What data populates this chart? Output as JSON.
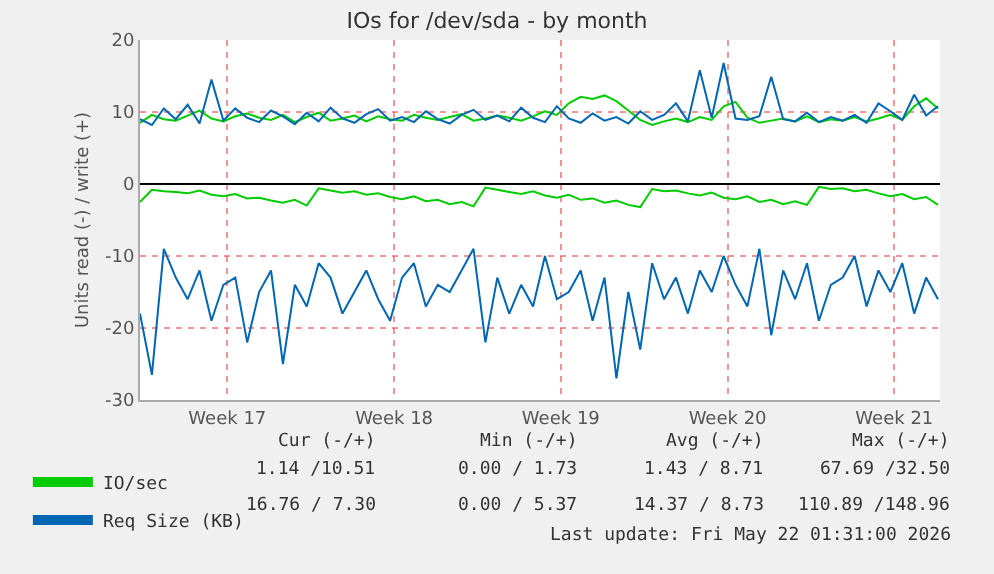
{
  "chart_data": {
    "type": "line",
    "title": "IOs for /dev/sda - by month",
    "ylabel": "Units read (-) / write (+)",
    "x": [
      "2026-04-19T20:00",
      "2026-04-20T08:00",
      "2026-04-20T20:00",
      "2026-04-21T08:00",
      "2026-04-21T20:00",
      "2026-04-22T08:00",
      "2026-04-22T20:00",
      "2026-04-23T08:00",
      "2026-04-23T20:00",
      "2026-04-24T08:00",
      "2026-04-24T20:00",
      "2026-04-25T08:00",
      "2026-04-25T20:00",
      "2026-04-26T08:00",
      "2026-04-26T20:00",
      "2026-04-27T08:00",
      "2026-04-27T20:00",
      "2026-04-28T08:00",
      "2026-04-28T20:00",
      "2026-04-29T08:00",
      "2026-04-29T20:00",
      "2026-04-30T08:00",
      "2026-04-30T20:00",
      "2026-05-01T08:00",
      "2026-05-01T20:00",
      "2026-05-02T08:00",
      "2026-05-02T20:00",
      "2026-05-03T08:00",
      "2026-05-03T20:00",
      "2026-05-04T08:00",
      "2026-05-04T20:00",
      "2026-05-05T08:00",
      "2026-05-05T20:00",
      "2026-05-06T08:00",
      "2026-05-06T20:00",
      "2026-05-07T08:00",
      "2026-05-07T20:00",
      "2026-05-08T08:00",
      "2026-05-08T20:00",
      "2026-05-09T08:00",
      "2026-05-09T20:00",
      "2026-05-10T08:00",
      "2026-05-10T20:00",
      "2026-05-11T08:00",
      "2026-05-11T20:00",
      "2026-05-12T08:00",
      "2026-05-12T20:00",
      "2026-05-13T08:00",
      "2026-05-13T20:00",
      "2026-05-14T08:00",
      "2026-05-14T20:00",
      "2026-05-15T08:00",
      "2026-05-15T20:00",
      "2026-05-16T08:00",
      "2026-05-16T20:00",
      "2026-05-17T08:00",
      "2026-05-17T20:00",
      "2026-05-18T08:00",
      "2026-05-18T20:00",
      "2026-05-19T08:00",
      "2026-05-19T20:00",
      "2026-05-20T08:00",
      "2026-05-20T20:00",
      "2026-05-21T08:00",
      "2026-05-21T20:00",
      "2026-05-22T08:00",
      "2026-05-22T20:00",
      "2026-05-23T08:00"
    ],
    "series": [
      {
        "name": "IO/sec",
        "color": "#00cc00",
        "values": [
          8.5,
          9.6,
          9,
          8.8,
          9.5,
          10.2,
          9.1,
          8.7,
          9.4,
          9.8,
          9.2,
          8.9,
          9.6,
          8.6,
          9.3,
          9.9,
          8.8,
          9.1,
          9.5,
          8.7,
          9.4,
          9,
          8.8,
          9.6,
          9.2,
          8.9,
          9.3,
          9.7,
          8.8,
          9.1,
          9.5,
          9.2,
          8.8,
          9.4,
          10.1,
          9.6,
          11.2,
          12.1,
          11.8,
          12.3,
          11.5,
          10.2,
          8.9,
          8.2,
          8.7,
          9.1,
          8.6,
          9.3,
          8.9,
          10.8,
          11.4,
          9.2,
          8.5,
          8.8,
          9.1,
          8.7,
          9.4,
          8.6,
          9,
          8.8,
          9.3,
          8.7,
          9.1,
          9.6,
          8.9,
          10.8,
          11.9,
          10.5
        ]
      },
      {
        "color": "#00cc00",
        "values": [
          -2.5,
          -0.8,
          -1,
          -1.1,
          -1.3,
          -0.9,
          -1.5,
          -1.7,
          -1.4,
          -2,
          -1.9,
          -2.3,
          -2.6,
          -2.2,
          -3,
          -0.6,
          -0.9,
          -1.2,
          -1,
          -1.5,
          -1.3,
          -1.8,
          -2.1,
          -1.7,
          -2.4,
          -2.2,
          -2.8,
          -2.5,
          -3.1,
          -0.5,
          -0.8,
          -1.1,
          -1.4,
          -1,
          -1.6,
          -1.9,
          -1.5,
          -2.2,
          -2,
          -2.6,
          -2.3,
          -2.9,
          -3.2,
          -0.7,
          -1,
          -0.9,
          -1.3,
          -1.6,
          -1.2,
          -1.9,
          -2.1,
          -1.7,
          -2.5,
          -2.2,
          -2.8,
          -2.4,
          -2.9,
          -0.4,
          -0.7,
          -0.6,
          -1,
          -0.8,
          -1.3,
          -1.7,
          -1.4,
          -2.1,
          -1.8,
          -2.9
        ]
      },
      {
        "name": "Req Size (KB)",
        "color": "#0066b3",
        "values": [
          9,
          8.2,
          10.5,
          9,
          11,
          8.4,
          14.5,
          8.8,
          10.5,
          9.2,
          8.6,
          10.2,
          9.4,
          8.3,
          9.9,
          8.7,
          10.6,
          9.1,
          8.5,
          9.7,
          10.4,
          8.8,
          9.3,
          8.6,
          10.1,
          9,
          8.4,
          9.6,
          10.3,
          8.9,
          9.5,
          8.7,
          10.6,
          9.2,
          8.6,
          10.8,
          9.1,
          8.5,
          9.8,
          8.8,
          9.3,
          8.4,
          10.1,
          8.9,
          9.6,
          11.2,
          8.7,
          15.8,
          9.2,
          16.8,
          9.1,
          8.9,
          9.4,
          14.9,
          9,
          8.7,
          9.9,
          8.6,
          9.3,
          8.8,
          9.6,
          8.5,
          11.2,
          10.1,
          8.9,
          12.4,
          9.5,
          10.8
        ]
      },
      {
        "color": "#0066b3",
        "values": [
          -18,
          -26.5,
          -9,
          -13,
          -16,
          -12,
          -19,
          -14,
          -13,
          -22,
          -15,
          -12,
          -25,
          -14,
          -17,
          -11,
          -13,
          -18,
          -15,
          -12,
          -16,
          -19,
          -13,
          -11,
          -17,
          -14,
          -15,
          -12,
          -9,
          -22,
          -13,
          -18,
          -14,
          -17,
          -10,
          -16,
          -15,
          -12,
          -19,
          -13,
          -27,
          -15,
          -23,
          -11,
          -16,
          -13,
          -18,
          -12,
          -15,
          -10,
          -14,
          -17,
          -9,
          -21,
          -12,
          -16,
          -11,
          -19,
          -14,
          -13,
          -10,
          -17,
          -12,
          -15,
          -11,
          -18,
          -13,
          -16
        ]
      }
    ],
    "xlim": [
      "2026-04-19T20:00",
      "2026-05-23T10:00"
    ],
    "xticks": [
      {
        "value": "2026-04-23T12:00",
        "label": "Week 17"
      },
      {
        "value": "2026-04-30T12:00",
        "label": "Week 18"
      },
      {
        "value": "2026-05-07T12:00",
        "label": "Week 19"
      },
      {
        "value": "2026-05-14T12:00",
        "label": "Week 20"
      },
      {
        "value": "2026-05-21T12:00",
        "label": "Week 21"
      }
    ],
    "ylim": [
      -30,
      20
    ],
    "yticks": [
      -30,
      -20,
      -10,
      0,
      10,
      20
    ],
    "ref_lines": [
      {
        "axis": "y",
        "value": 0,
        "color": "#000000"
      }
    ],
    "grid": true,
    "legend": "bottom",
    "marker": "none",
    "line_style": "solid",
    "annotations": [
      "Cur (-/+)",
      "Min (-/+)",
      "Avg (-/+)",
      "Max (-/+)",
      "1.14 /10.51",
      "0.00 / 1.73",
      "1.43 / 8.71",
      "67.69 /32.50",
      "16.76 / 7.30",
      "0.00 / 5.37",
      "14.37 / 8.73",
      "110.89 /148.96",
      "Last update: Fri May 22 01:31:00 2026"
    ]
  }
}
